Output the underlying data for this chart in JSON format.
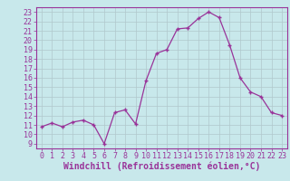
{
  "x": [
    0,
    1,
    2,
    3,
    4,
    5,
    6,
    7,
    8,
    9,
    10,
    11,
    12,
    13,
    14,
    15,
    16,
    17,
    18,
    19,
    20,
    21,
    22,
    23
  ],
  "y": [
    10.8,
    11.2,
    10.8,
    11.3,
    11.5,
    11.0,
    9.0,
    12.3,
    12.6,
    11.1,
    15.7,
    18.6,
    19.0,
    21.2,
    21.3,
    22.3,
    23.0,
    22.4,
    19.5,
    16.0,
    14.5,
    14.0,
    12.3,
    12.0
  ],
  "line_color": "#993399",
  "marker_color": "#993399",
  "bg_color": "#c8e8eb",
  "grid_color": "#b0c8cc",
  "xlabel": "Windchill (Refroidissement éolien,°C)",
  "ylabel_ticks": [
    9,
    10,
    11,
    12,
    13,
    14,
    15,
    16,
    17,
    18,
    19,
    20,
    21,
    22,
    23
  ],
  "xlim": [
    -0.5,
    23.5
  ],
  "ylim": [
    8.5,
    23.5
  ],
  "tick_label_color": "#993399",
  "xlabel_color": "#993399",
  "label_fontsize": 7,
  "tick_fontsize": 6
}
